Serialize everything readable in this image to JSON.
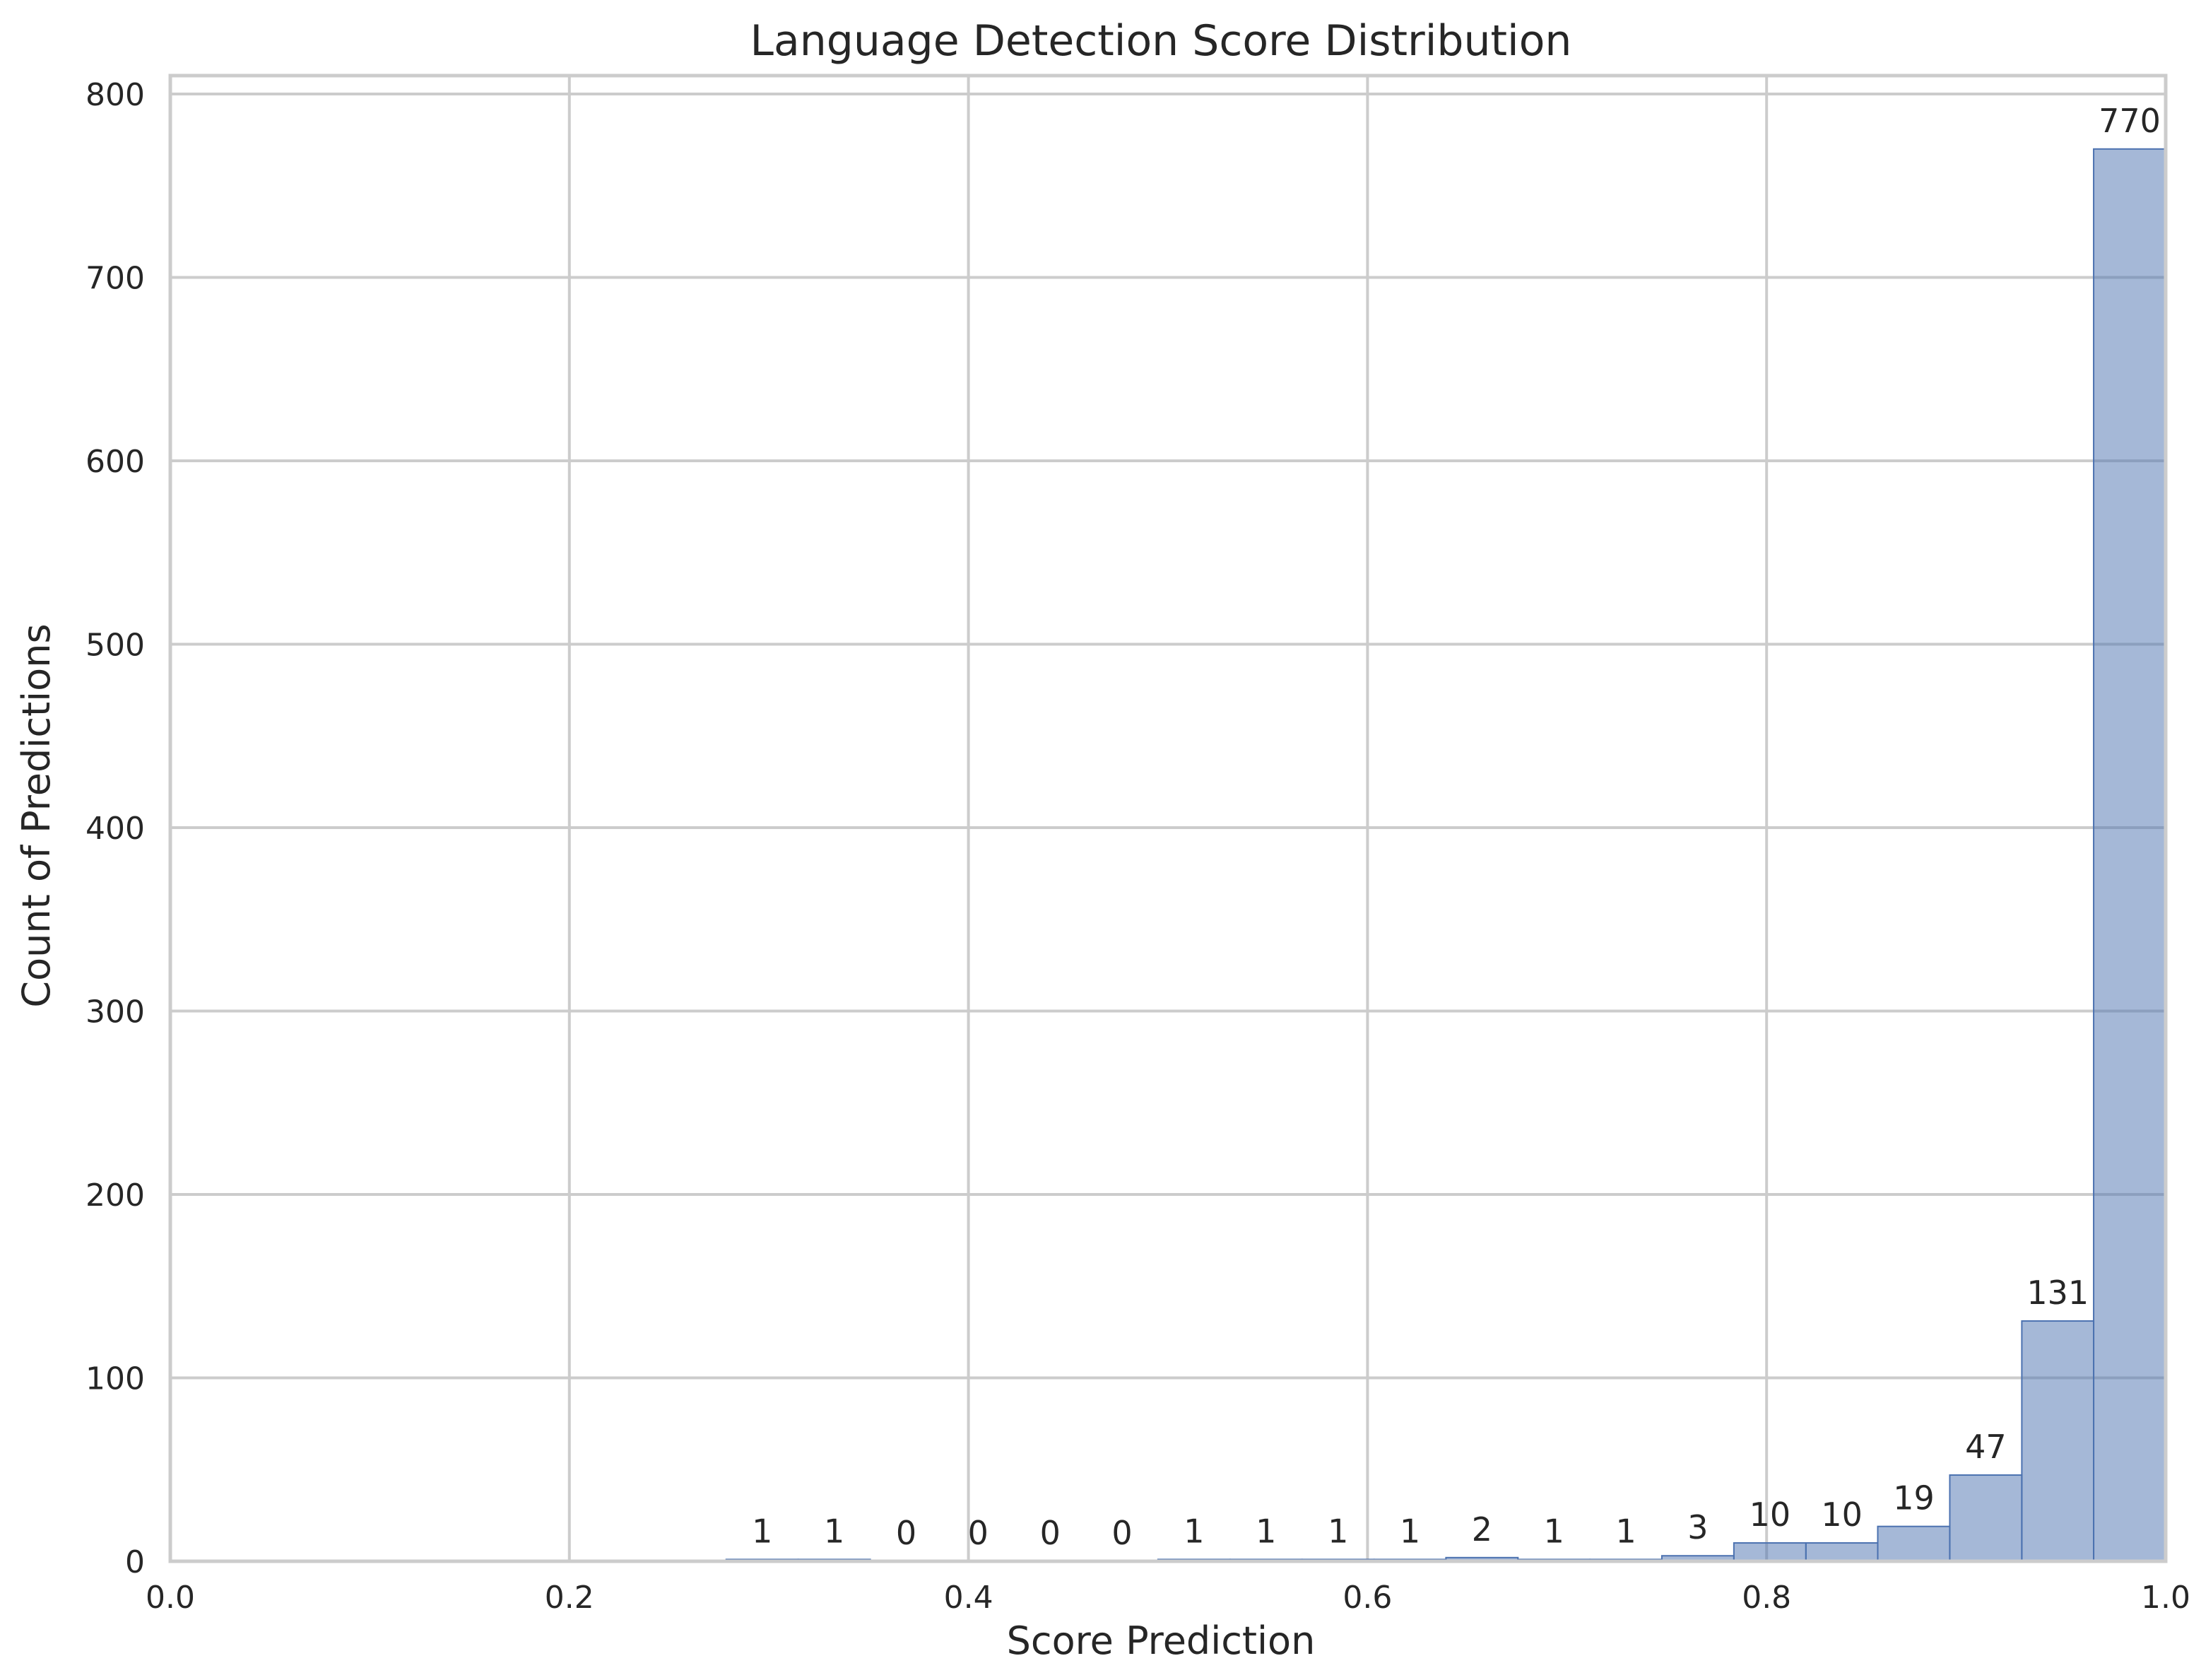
{
  "chart_data": {
    "type": "bar",
    "title": "Language Detection Score Distribution",
    "xlabel": "Score Prediction",
    "ylabel": "Count of Predictions",
    "xlim": [
      0.0,
      1.0
    ],
    "ylim": [
      0,
      810
    ],
    "xticks": [
      "0.0",
      "0.2",
      "0.4",
      "0.6",
      "0.8",
      "1.0"
    ],
    "xtick_values": [
      0.0,
      0.2,
      0.4,
      0.6,
      0.8,
      1.0
    ],
    "yticks": [
      "0",
      "100",
      "200",
      "300",
      "400",
      "500",
      "600",
      "700",
      "800"
    ],
    "ytick_values": [
      0,
      100,
      200,
      300,
      400,
      500,
      600,
      700,
      800
    ],
    "grid": true,
    "bar_color": "#4c72b0",
    "bar_opacity": 0.5,
    "bins": [
      {
        "start": 0.2786,
        "end": 0.3147,
        "count": 1
      },
      {
        "start": 0.3147,
        "end": 0.3508,
        "count": 1
      },
      {
        "start": 0.3508,
        "end": 0.3868,
        "count": 0
      },
      {
        "start": 0.3868,
        "end": 0.4229,
        "count": 0
      },
      {
        "start": 0.4229,
        "end": 0.459,
        "count": 0
      },
      {
        "start": 0.459,
        "end": 0.495,
        "count": 0
      },
      {
        "start": 0.495,
        "end": 0.5311,
        "count": 1
      },
      {
        "start": 0.5311,
        "end": 0.5672,
        "count": 1
      },
      {
        "start": 0.5672,
        "end": 0.6033,
        "count": 1
      },
      {
        "start": 0.6033,
        "end": 0.6393,
        "count": 1
      },
      {
        "start": 0.6393,
        "end": 0.6754,
        "count": 2
      },
      {
        "start": 0.6754,
        "end": 0.7115,
        "count": 1
      },
      {
        "start": 0.7115,
        "end": 0.7475,
        "count": 1
      },
      {
        "start": 0.7475,
        "end": 0.7836,
        "count": 3
      },
      {
        "start": 0.7836,
        "end": 0.8197,
        "count": 10
      },
      {
        "start": 0.8197,
        "end": 0.8557,
        "count": 10
      },
      {
        "start": 0.8557,
        "end": 0.8918,
        "count": 19
      },
      {
        "start": 0.8918,
        "end": 0.9279,
        "count": 47
      },
      {
        "start": 0.9279,
        "end": 0.9639,
        "count": 131
      },
      {
        "start": 0.9639,
        "end": 1.0,
        "count": 770
      }
    ]
  }
}
